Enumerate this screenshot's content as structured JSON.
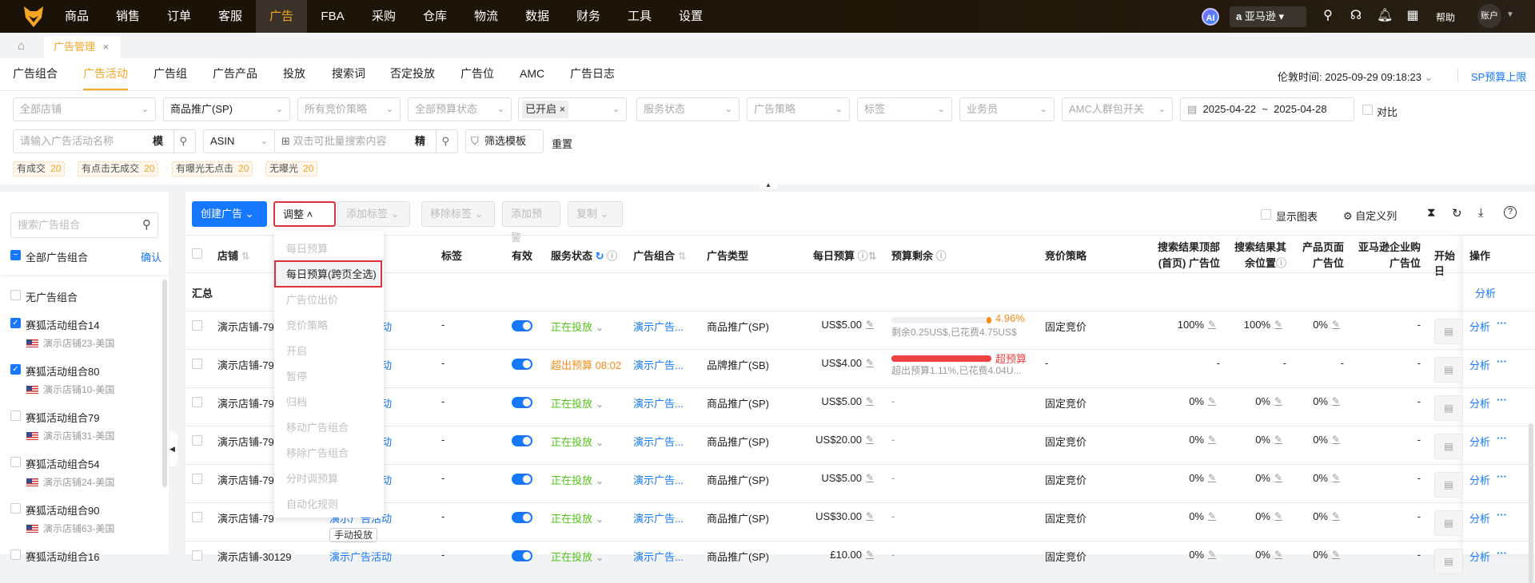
{
  "topnav": {
    "items": [
      "商品",
      "销售",
      "订单",
      "客服",
      "广告",
      "FBA",
      "采购",
      "仓库",
      "物流",
      "数据",
      "财务",
      "工具",
      "设置"
    ],
    "active": 4,
    "ai": "AI",
    "marketplace": "亚马逊",
    "help": "帮助",
    "account": "账户"
  },
  "page_tab": {
    "label": "广告管理",
    "close": "×"
  },
  "subtabs": [
    "广告组合",
    "广告活动",
    "广告组",
    "广告产品",
    "投放",
    "搜索词",
    "否定投放",
    "广告位",
    "AMC",
    "广告日志"
  ],
  "active_subtab": 1,
  "time_label": "伦敦时间: 2025-09-29 09:18:23",
  "sp_budget_link": "SP预算上限",
  "filters": {
    "store": "全部店铺",
    "ad_type": "商品推广(SP)",
    "bid_strategy": "所有竞价策略",
    "budget_status": "全部预算状态",
    "state_chip": "已开启",
    "service_status": "服务状态",
    "ad_strategy": "广告策略",
    "tag": "标签",
    "salesman": "业务员",
    "amc": "AMC人群包开关",
    "date_start": "2025-04-22",
    "date_sep": "~",
    "date_end": "2025-04-28",
    "compare": "对比",
    "name_placeholder": "请输入广告活动名称",
    "name_mode": "模",
    "asin": "ASIN",
    "batch_placeholder": "双击可批量搜索内容",
    "batch_mode": "精",
    "template": "筛选模板",
    "reset": "重置"
  },
  "quick_tags": [
    {
      "label": "有成交",
      "count": "20"
    },
    {
      "label": "有点击无成交",
      "count": "20"
    },
    {
      "label": "有曝光无点击",
      "count": "20"
    },
    {
      "label": "无曝光",
      "count": "20"
    }
  ],
  "sidebar": {
    "search_placeholder": "搜索广告组合",
    "all": "全部广告组合",
    "confirm": "确认",
    "none": "无广告组合",
    "items": [
      {
        "name": "赛狐活动组合14",
        "store": "演示店铺23-美国",
        "checked": true
      },
      {
        "name": "赛狐活动组合80",
        "store": "演示店铺10-美国",
        "checked": true
      },
      {
        "name": "赛狐活动组合79",
        "store": "演示店铺31-美国",
        "checked": false
      },
      {
        "name": "赛狐活动组合54",
        "store": "演示店铺24-美国",
        "checked": false
      },
      {
        "name": "赛狐活动组合90",
        "store": "演示店铺63-美国",
        "checked": false
      },
      {
        "name": "赛狐活动组合16",
        "store": "",
        "checked": false
      }
    ]
  },
  "toolbar": {
    "create": "创建广告",
    "adjust": "调整",
    "add_tag": "添加标签",
    "remove_tag": "移除标签",
    "add_alert": "添加预警",
    "copy": "复制",
    "show_chart": "显示图表",
    "custom_cols": "自定义列"
  },
  "menu": {
    "items": [
      {
        "label": "每日预算",
        "enabled": false
      },
      {
        "label": "每日预算(跨页全选)",
        "enabled": true,
        "highlighted": true
      },
      {
        "label": "广告位出价",
        "enabled": false
      },
      {
        "label": "竞价策略",
        "enabled": false
      },
      {
        "label": "开启",
        "enabled": false
      },
      {
        "label": "暂停",
        "enabled": false
      },
      {
        "label": "归档",
        "enabled": false
      },
      {
        "label": "移动广告组合",
        "enabled": false
      },
      {
        "label": "移除广告组合",
        "enabled": false
      },
      {
        "label": "分时调预算",
        "enabled": false
      },
      {
        "label": "自动化规则",
        "enabled": false
      }
    ]
  },
  "table": {
    "headers": {
      "shop": "店铺",
      "tag": "标签",
      "valid": "有效",
      "status": "服务状态",
      "group": "广告组合",
      "type": "广告类型",
      "budget": "每日预算",
      "remain": "预算剩余",
      "bid": "竞价策略",
      "top1": "搜索结果顶部",
      "top2": "(首页) 广告位",
      "rest1": "搜索结果其",
      "rest2": "余位置",
      "page1": "产品页面",
      "page2": "广告位",
      "biz1": "亚马逊企业购",
      "biz2": "广告位",
      "start": "开始日",
      "op": "操作"
    },
    "summary": "汇总",
    "summary_op": "分析",
    "rows": [
      {
        "shop": "演示店铺-79",
        "name": "演示广告活动",
        "tag": "-",
        "status": "正在投放",
        "status_color": "green",
        "group": "演示广告...",
        "type": "商品推广(SP)",
        "budget": "US$5.00",
        "remain_pct": 4.96,
        "remain_label": "4.96%",
        "remain_text": "剩余0.25US$,已花费4.75US$",
        "bid": "固定竞价",
        "top": "100%",
        "rest": "100%",
        "page": "0%",
        "biz": "-"
      },
      {
        "shop": "演示店铺-79",
        "name": "演示广告活动",
        "tag": "-",
        "status": "超出预算 08:02",
        "status_color": "orange",
        "group": "演示广告...",
        "type": "品牌推广(SB)",
        "budget": "US$4.00",
        "remain_pct": 100,
        "remain_over": true,
        "remain_label": "超预算",
        "remain_text": "超出预算1.11%,已花费4.04U...",
        "bid": "-",
        "top": "-",
        "rest": "-",
        "page": "-",
        "biz": "-"
      },
      {
        "shop": "演示店铺-79",
        "name": "演示广告活动",
        "tag": "-",
        "status": "正在投放",
        "status_color": "green",
        "group": "演示广告...",
        "type": "商品推广(SP)",
        "budget": "US$5.00",
        "remain_dash": "-",
        "bid": "固定竞价",
        "top": "0%",
        "rest": "0%",
        "page": "0%",
        "biz": "-"
      },
      {
        "shop": "演示店铺-79",
        "name": "演示广告活动",
        "tag": "-",
        "status": "正在投放",
        "status_color": "green",
        "group": "演示广告...",
        "type": "商品推广(SP)",
        "budget": "US$20.00",
        "remain_dash": "-",
        "bid": "固定竞价",
        "top": "0%",
        "rest": "0%",
        "page": "0%",
        "biz": "-"
      },
      {
        "shop": "演示店铺-79",
        "name": "演示广告活动",
        "tag": "-",
        "status": "正在投放",
        "status_color": "green",
        "group": "演示广告...",
        "type": "商品推广(SP)",
        "budget": "US$5.00",
        "remain_dash": "-",
        "bid": "固定竞价",
        "top": "0%",
        "rest": "0%",
        "page": "0%",
        "biz": "-"
      },
      {
        "shop": "演示店铺-79",
        "name": "演示广告活动",
        "tag": "-",
        "status": "正在投放",
        "status_color": "green",
        "group": "演示广告...",
        "type": "商品推广(SP)",
        "budget": "US$30.00",
        "remain_dash": "-",
        "bid": "固定竞价",
        "top": "0%",
        "rest": "0%",
        "page": "0%",
        "biz": "-",
        "target_tag": "手动投放"
      },
      {
        "shop": "演示店铺-30129",
        "name": "演示广告活动",
        "tag": "-",
        "status": "正在投放",
        "status_color": "green",
        "group": "演示广告...",
        "type": "商品推广(SP)",
        "budget": "£10.00",
        "remain_dash": "-",
        "bid": "固定竞价",
        "top": "0%",
        "rest": "0%",
        "page": "0%",
        "biz": "-"
      }
    ],
    "op_analyze": "分析",
    "op_more": "···"
  },
  "colors": {
    "accent": "#f5a623",
    "primary": "#1677ff",
    "danger": "#f04142",
    "success": "#52c41a",
    "warning": "#fa8c16"
  }
}
